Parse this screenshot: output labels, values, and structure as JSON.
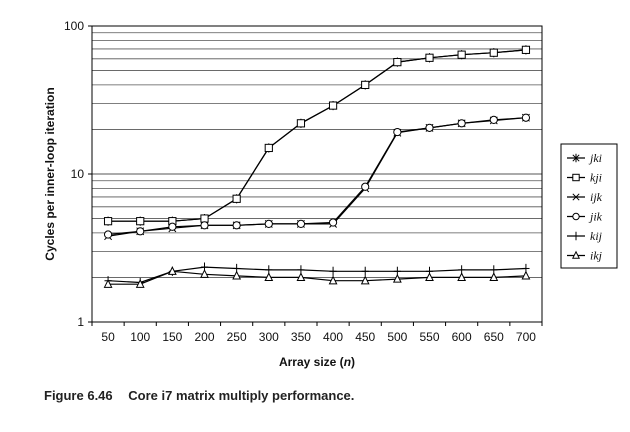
{
  "chart_data": {
    "type": "line",
    "title": "",
    "xlabel_text": "Array size",
    "xlabel_var": "n",
    "ylabel": "Cycles per inner-loop iteration",
    "yscale": "log",
    "ylim": [
      1,
      100
    ],
    "yticks": [
      1,
      10,
      100
    ],
    "x": [
      50,
      100,
      150,
      200,
      250,
      300,
      350,
      400,
      450,
      500,
      550,
      600,
      650,
      700
    ],
    "grid": "horizontal",
    "legend_position": "right",
    "series": [
      {
        "name": "jki",
        "marker": "asterisk",
        "values": [
          4.8,
          4.8,
          4.8,
          5.0,
          6.8,
          15.0,
          22.0,
          29.0,
          40.0,
          57.0,
          61.0,
          64.0,
          66.0,
          69.0
        ]
      },
      {
        "name": "kji",
        "marker": "square",
        "values": [
          4.8,
          4.8,
          4.8,
          5.0,
          6.8,
          15.0,
          22.0,
          29.0,
          40.0,
          57.0,
          61.0,
          64.0,
          66.0,
          69.0
        ]
      },
      {
        "name": "ijk",
        "marker": "x",
        "values": [
          3.8,
          4.1,
          4.3,
          4.5,
          4.5,
          4.6,
          4.6,
          4.6,
          8.0,
          19.0,
          20.5,
          22.0,
          23.0,
          24.0
        ]
      },
      {
        "name": "jik",
        "marker": "circle",
        "values": [
          3.9,
          4.1,
          4.4,
          4.5,
          4.5,
          4.6,
          4.6,
          4.7,
          8.2,
          19.2,
          20.5,
          22.0,
          23.2,
          24.0
        ]
      },
      {
        "name": "kij",
        "marker": "plus",
        "values": [
          1.9,
          1.85,
          2.2,
          2.35,
          2.3,
          2.25,
          2.25,
          2.2,
          2.2,
          2.2,
          2.2,
          2.25,
          2.25,
          2.3
        ]
      },
      {
        "name": "ikj",
        "marker": "triangle",
        "values": [
          1.8,
          1.8,
          2.2,
          2.1,
          2.05,
          2.0,
          2.0,
          1.9,
          1.9,
          1.95,
          2.0,
          2.0,
          2.0,
          2.05
        ]
      }
    ]
  },
  "caption": {
    "number": "Figure 6.46",
    "text": "Core i7 matrix multiply performance."
  }
}
